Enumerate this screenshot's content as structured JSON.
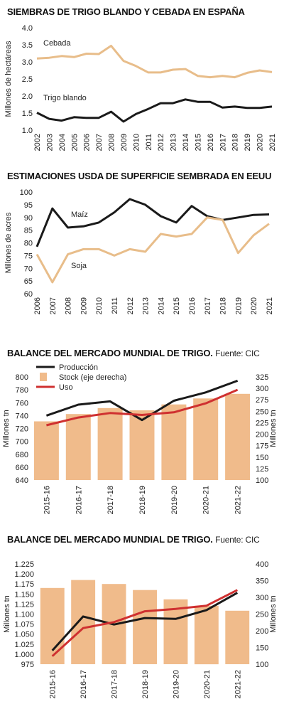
{
  "charts": {
    "c1": {
      "title": "SIEMBRAS DE TRIGO BLANDO Y CEBADA EN ESPAÑA"
    },
    "c2": {
      "title": "ESTIMACIONES USDA DE SUPERFICIE SEMBRADA EN EEUU"
    },
    "c3": {
      "title": "BALANCE DEL MERCADO MUNDIAL DE TRIGO.",
      "source": "Fuente: CIC"
    },
    "c4": {
      "title": "BALANCE DEL MERCADO MUNDIAL DE TRIGO.",
      "source": "Fuente: CIC"
    }
  },
  "chart_data": [
    {
      "id": "c1",
      "type": "line",
      "title": "SIEMBRAS DE TRIGO BLANDO Y CEBADA EN ESPAÑA",
      "ylabel": "Millones de hectáreas",
      "ylim": [
        1.0,
        4.0
      ],
      "yticks": [
        "1.0",
        "1.5",
        "2.0",
        "2.5",
        "3.0",
        "3.5",
        "4.0"
      ],
      "x": [
        "2002",
        "2003",
        "2004",
        "2005",
        "2006",
        "2007",
        "2008",
        "2009",
        "2010",
        "2011",
        "2012",
        "2013",
        "2014",
        "2015",
        "2016",
        "2017",
        "2018",
        "2019",
        "2020",
        "2021"
      ],
      "series": [
        {
          "name": "Cebada",
          "color": "#e8bd8a",
          "values": [
            3.1,
            3.12,
            3.17,
            3.14,
            3.24,
            3.23,
            3.47,
            3.03,
            2.88,
            2.69,
            2.69,
            2.77,
            2.79,
            2.59,
            2.55,
            2.59,
            2.55,
            2.68,
            2.75,
            2.7
          ]
        },
        {
          "name": "Trigo blando",
          "color": "#1a1a1a",
          "values": [
            1.51,
            1.33,
            1.28,
            1.38,
            1.36,
            1.36,
            1.54,
            1.25,
            1.47,
            1.62,
            1.79,
            1.79,
            1.9,
            1.83,
            1.83,
            1.66,
            1.69,
            1.65,
            1.65,
            1.69
          ]
        }
      ],
      "grid": false,
      "legend": "inline labels"
    },
    {
      "id": "c2",
      "type": "line",
      "title": "ESTIMACIONES USDA DE SUPERFICIE SEMBRADA EN EEUU",
      "ylabel": "Millones de acres",
      "ylim": [
        60,
        100
      ],
      "yticks": [
        "60",
        "65",
        "70",
        "75",
        "80",
        "85",
        "90",
        "95",
        "100"
      ],
      "x": [
        "2006",
        "2007",
        "2008",
        "2009",
        "2010",
        "2011",
        "2012",
        "2013",
        "2014",
        "2015",
        "2016",
        "2017",
        "2018",
        "2019",
        "2020",
        "2021"
      ],
      "series": [
        {
          "name": "Maíz",
          "color": "#1a1a1a",
          "values": [
            78.5,
            93.5,
            86.0,
            86.5,
            88.0,
            92.0,
            97.2,
            95.0,
            90.5,
            88.0,
            94.5,
            90.5,
            89.0,
            90.0,
            91.0,
            91.2
          ]
        },
        {
          "name": "Soja",
          "color": "#e8bd8a",
          "values": [
            75.5,
            64.5,
            75.5,
            77.5,
            77.5,
            75.0,
            77.5,
            76.5,
            83.5,
            82.5,
            83.5,
            90.0,
            89.0,
            76.0,
            83.0,
            87.5
          ]
        }
      ],
      "grid": false,
      "legend": "inline labels"
    },
    {
      "id": "c3",
      "type": "bar",
      "title": "BALANCE DEL MERCADO MUNDIAL DE TRIGO. Fuente: CIC",
      "ylabel": "Millones tn",
      "ylabel_right": "Millones tn",
      "ylim": [
        640,
        800
      ],
      "yticks": [
        "640",
        "660",
        "680",
        "700",
        "720",
        "740",
        "760",
        "780",
        "800"
      ],
      "ylim_right": [
        100,
        325
      ],
      "yticks_right": [
        "100",
        "125",
        "150",
        "175",
        "200",
        "225",
        "250",
        "275",
        "300",
        "325"
      ],
      "categories": [
        "2015-16",
        "2016-17",
        "2017-18",
        "2018-19",
        "2019-20",
        "2020-21",
        "2021-22"
      ],
      "series": [
        {
          "name": "Stock (eje derecha)",
          "kind": "bar",
          "axis": "right",
          "color": "#f0bb8b",
          "values": [
            228,
            244,
            257,
            252,
            265,
            278,
            288
          ]
        },
        {
          "name": "Producción",
          "kind": "line",
          "axis": "left",
          "color": "#1a1a1a",
          "values": [
            740,
            757,
            762,
            733,
            763,
            776,
            794
          ]
        },
        {
          "name": "Uso",
          "kind": "line",
          "axis": "left",
          "color": "#cf3030",
          "values": [
            725,
            737,
            744,
            741,
            745,
            759,
            780
          ]
        }
      ],
      "legend": "top-left"
    },
    {
      "id": "c4",
      "type": "bar",
      "title": "BALANCE DEL MERCADO MUNDIAL DE TRIGO. Fuente: CIC",
      "ylabel": "Millones tn",
      "ylabel_right": "Millones tn",
      "ylim": [
        975,
        1225
      ],
      "yticks": [
        "975",
        "1.000",
        "1.025",
        "1.050",
        "1.075",
        "1.100",
        "1.125",
        "1.150",
        "1.175",
        "1.200",
        "1.225"
      ],
      "ylim_right": [
        100,
        400
      ],
      "yticks_right": [
        "100",
        "150",
        "200",
        "250",
        "300",
        "350",
        "400"
      ],
      "categories": [
        "2015-16",
        "2016-17",
        "2017-18",
        "2018-19",
        "2019-20",
        "2020-21",
        "2021-22"
      ],
      "series": [
        {
          "name": "Stock",
          "kind": "bar",
          "axis": "right",
          "color": "#f0bb8b",
          "values": [
            328,
            352,
            340,
            322,
            294,
            275,
            260
          ]
        },
        {
          "name": "Producción",
          "kind": "line",
          "axis": "left",
          "color": "#1a1a1a",
          "values": [
            1009,
            1094,
            1074,
            1090,
            1088,
            1110,
            1153
          ]
        },
        {
          "name": "Uso",
          "kind": "line",
          "axis": "left",
          "color": "#cf3030",
          "values": [
            995,
            1065,
            1080,
            1107,
            1113,
            1121,
            1160
          ]
        }
      ],
      "legend": "none"
    }
  ]
}
